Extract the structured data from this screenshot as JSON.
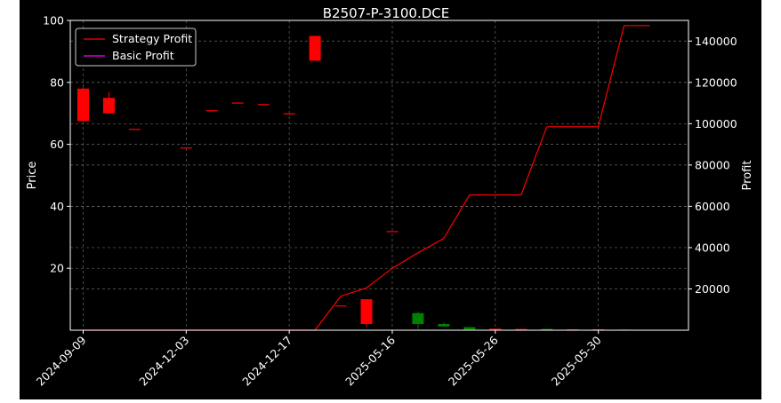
{
  "chart_data": {
    "type": "candlestick+line",
    "title": "B2507-P-3100.DCE",
    "ylabel_left": "Price",
    "ylabel_right": "Profit",
    "xlabel": "",
    "xlim": [
      -0.5,
      23.5
    ],
    "ylim_left": [
      0,
      100
    ],
    "ylim_right": [
      0,
      150000
    ],
    "grid": true,
    "legend_position": "top-left",
    "left_ticks": [
      20,
      40,
      60,
      80,
      100
    ],
    "right_ticks": [
      20000,
      40000,
      60000,
      80000,
      100000,
      120000,
      140000
    ],
    "x_tick_labels": [
      {
        "index": 0,
        "label": "2024-09-09"
      },
      {
        "index": 4,
        "label": "2024-12-03"
      },
      {
        "index": 8,
        "label": "2024-12-17"
      },
      {
        "index": 12,
        "label": "2025-05-16"
      },
      {
        "index": 16,
        "label": "2025-05-26"
      },
      {
        "index": 20,
        "label": "2025-05-30"
      }
    ],
    "candles": [
      {
        "i": 0,
        "open": 67.5,
        "high": 78.5,
        "low": 67.5,
        "close": 78.0
      },
      {
        "i": 1,
        "open": 70.0,
        "high": 77.0,
        "low": 70.0,
        "close": 75.0
      },
      {
        "i": 2,
        "open": 65.0,
        "high": 65.0,
        "low": 65.0,
        "close": 65.0
      },
      {
        "i": 4,
        "open": 59.0,
        "high": 59.0,
        "low": 59.0,
        "close": 59.0
      },
      {
        "i": 5,
        "open": 71.0,
        "high": 71.0,
        "low": 71.0,
        "close": 71.0
      },
      {
        "i": 6,
        "open": 73.5,
        "high": 73.5,
        "low": 73.5,
        "close": 73.5
      },
      {
        "i": 7,
        "open": 73.0,
        "high": 73.0,
        "low": 73.0,
        "close": 73.0
      },
      {
        "i": 8,
        "open": 70.0,
        "high": 70.0,
        "low": 70.0,
        "close": 70.0
      },
      {
        "i": 9,
        "open": 87.0,
        "high": 95.0,
        "low": 87.0,
        "close": 95.0
      },
      {
        "i": 10,
        "open": 8.0,
        "high": 8.0,
        "low": 8.0,
        "close": 8.0
      },
      {
        "i": 11,
        "open": 2.0,
        "high": 10.0,
        "low": 1.0,
        "close": 10.0
      },
      {
        "i": 12,
        "open": 32.0,
        "high": 32.0,
        "low": 32.0,
        "close": 32.0
      },
      {
        "i": 13,
        "open": 5.5,
        "high": 6.0,
        "low": 0.5,
        "close": 2.0
      },
      {
        "i": 14,
        "open": 2.0,
        "high": 2.5,
        "low": 1.2,
        "close": 1.2
      },
      {
        "i": 15,
        "open": 1.0,
        "high": 1.0,
        "low": 0.2,
        "close": 0.2
      },
      {
        "i": 16,
        "open": 0.3,
        "high": 0.6,
        "low": 0.1,
        "close": 0.5
      },
      {
        "i": 17,
        "open": 0.2,
        "high": 0.4,
        "low": 0.1,
        "close": 0.4
      },
      {
        "i": 18,
        "open": 0.4,
        "high": 0.4,
        "low": 0.1,
        "close": 0.1
      },
      {
        "i": 19,
        "open": 0.1,
        "high": 0.3,
        "low": 0.1,
        "close": 0.3
      },
      {
        "i": 20,
        "open": 0.1,
        "high": 0.3,
        "low": 0.1,
        "close": 0.3
      },
      {
        "i": 21,
        "open": 0.1,
        "high": 0.2,
        "low": 0.1,
        "close": 0.2
      }
    ],
    "series": [
      {
        "name": "Strategy Profit",
        "color": "#ff0000",
        "x": [
          0,
          9,
          10,
          11,
          12,
          13,
          14,
          15,
          16,
          17,
          18,
          19,
          20,
          21,
          22
        ],
        "y": [
          0,
          0,
          16500,
          20500,
          30000,
          37500,
          44500,
          65500,
          65500,
          65500,
          98500,
          98500,
          98500,
          147500,
          147500
        ]
      },
      {
        "name": "Basic Profit",
        "color": "#ff00ff",
        "x": [],
        "y": []
      }
    ],
    "colors": {
      "up": "#ff0000",
      "down": "#008000",
      "background": "#000000",
      "grid": "#808080"
    }
  }
}
